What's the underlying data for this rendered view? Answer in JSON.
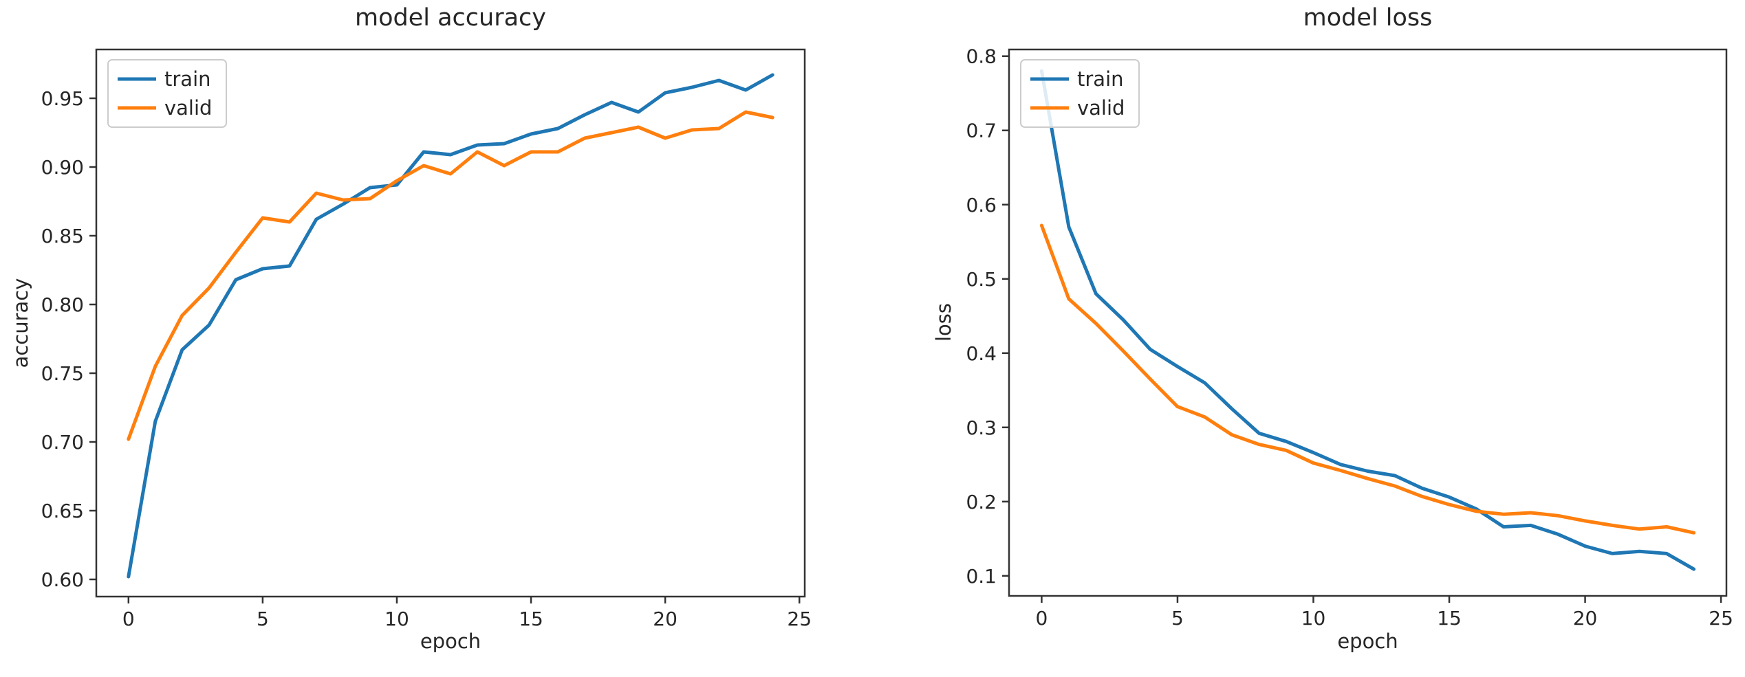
{
  "page": {
    "background": "#ffffff",
    "text_color": "#262626",
    "spine_color": "#333333",
    "legend_border_color": "#cccccc"
  },
  "chart_data": [
    {
      "type": "line",
      "title": "model accuracy",
      "xlabel": "epoch",
      "ylabel": "accuracy",
      "x": [
        0,
        1,
        2,
        3,
        4,
        5,
        6,
        7,
        8,
        9,
        10,
        11,
        12,
        13,
        14,
        15,
        16,
        17,
        18,
        19,
        20,
        21,
        22,
        23,
        24
      ],
      "series": [
        {
          "name": "train",
          "color": "#1f77b4",
          "values": [
            0.602,
            0.715,
            0.767,
            0.785,
            0.818,
            0.826,
            0.828,
            0.862,
            0.873,
            0.885,
            0.887,
            0.911,
            0.909,
            0.916,
            0.917,
            0.924,
            0.928,
            0.938,
            0.947,
            0.94,
            0.954,
            0.958,
            0.963,
            0.956,
            0.967
          ]
        },
        {
          "name": "valid",
          "color": "#ff7f0e",
          "values": [
            0.702,
            0.755,
            0.792,
            0.812,
            0.838,
            0.863,
            0.86,
            0.881,
            0.876,
            0.877,
            0.89,
            0.901,
            0.895,
            0.911,
            0.901,
            0.911,
            0.911,
            0.921,
            0.925,
            0.929,
            0.921,
            0.927,
            0.928,
            0.94,
            0.936
          ]
        }
      ],
      "xticks": [
        0,
        5,
        10,
        15,
        20,
        25
      ],
      "yticks": [
        0.6,
        0.65,
        0.7,
        0.75,
        0.8,
        0.85,
        0.9,
        0.95
      ],
      "ytick_labels": [
        "0.60",
        "0.65",
        "0.70",
        "0.75",
        "0.80",
        "0.85",
        "0.90",
        "0.95"
      ],
      "xlim": [
        -1.2,
        25.2
      ],
      "ylim": [
        0.5875,
        0.9855
      ],
      "grid": false,
      "legend": {
        "position": "upper-left",
        "entries": [
          "train",
          "valid"
        ]
      }
    },
    {
      "type": "line",
      "title": "model loss",
      "xlabel": "epoch",
      "ylabel": "loss",
      "x": [
        0,
        1,
        2,
        3,
        4,
        5,
        6,
        7,
        8,
        9,
        10,
        11,
        12,
        13,
        14,
        15,
        16,
        17,
        18,
        19,
        20,
        21,
        22,
        23,
        24
      ],
      "series": [
        {
          "name": "train",
          "color": "#1f77b4",
          "values": [
            0.78,
            0.57,
            0.48,
            0.445,
            0.405,
            0.382,
            0.36,
            0.325,
            0.292,
            0.281,
            0.266,
            0.25,
            0.241,
            0.235,
            0.218,
            0.206,
            0.19,
            0.166,
            0.168,
            0.156,
            0.14,
            0.13,
            0.133,
            0.13,
            0.109
          ]
        },
        {
          "name": "valid",
          "color": "#ff7f0e",
          "values": [
            0.572,
            0.473,
            0.44,
            0.403,
            0.365,
            0.328,
            0.314,
            0.29,
            0.277,
            0.269,
            0.252,
            0.242,
            0.231,
            0.221,
            0.207,
            0.196,
            0.187,
            0.183,
            0.185,
            0.181,
            0.174,
            0.168,
            0.163,
            0.166,
            0.158
          ]
        }
      ],
      "xticks": [
        0,
        5,
        10,
        15,
        20,
        25
      ],
      "yticks": [
        0.1,
        0.2,
        0.3,
        0.4,
        0.5,
        0.6,
        0.7,
        0.8
      ],
      "ytick_labels": [
        "0.1",
        "0.2",
        "0.3",
        "0.4",
        "0.5",
        "0.6",
        "0.7",
        "0.8"
      ],
      "xlim": [
        -1.2,
        25.2
      ],
      "ylim": [
        0.073,
        0.809
      ],
      "grid": false,
      "legend": {
        "position": "upper-left",
        "entries": [
          "train",
          "valid"
        ]
      }
    }
  ]
}
